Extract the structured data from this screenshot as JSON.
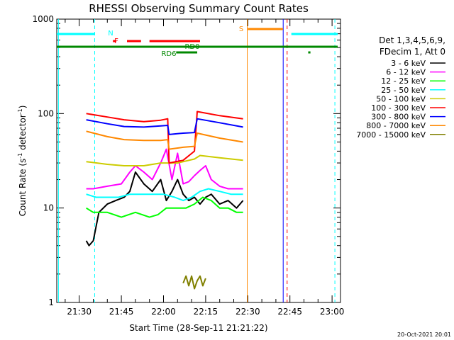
{
  "chart_data": {
    "type": "line",
    "title": "RHESSI Observing Summary Count Rates",
    "xlabel": "Start Time (28-Sep-11 21:21:22)",
    "ylabel_parts": [
      "Count Rate (s",
      "-1",
      " detector",
      "-1",
      ")"
    ],
    "yscale": "log",
    "ylim": [
      1,
      1000
    ],
    "xlim_min": [
      1282,
      1383
    ],
    "x_ticks": [
      {
        "m": 1290,
        "label": "21:30"
      },
      {
        "m": 1305,
        "label": "21:45"
      },
      {
        "m": 1320,
        "label": "22:00"
      },
      {
        "m": 1335,
        "label": "22:15"
      },
      {
        "m": 1350,
        "label": "22:30"
      },
      {
        "m": 1365,
        "label": "22:45"
      },
      {
        "m": 1380,
        "label": "23:00"
      }
    ],
    "y_ticks": [
      {
        "v": 1,
        "label": "1"
      },
      {
        "v": 10,
        "label": "10"
      },
      {
        "v": 100,
        "label": "100"
      },
      {
        "v": 1000,
        "label": "1000"
      }
    ],
    "legend_header": [
      "Det 1,3,4,5,6,9,",
      "FDecim 1, Att 0"
    ],
    "legend_position": "right",
    "timestamp": "20-Oct-2021 20:01",
    "series": [
      {
        "name": "3 - 6 keV",
        "color": "#000000",
        "x": [
          1292.5,
          1293.5,
          1295,
          1297,
          1300,
          1303,
          1306,
          1308,
          1310,
          1313,
          1316,
          1319,
          1321,
          1323,
          1325,
          1327,
          1329,
          1331,
          1333,
          1335,
          1337,
          1340,
          1343,
          1346,
          1348.3
        ],
        "y": [
          4.5,
          4,
          4.5,
          9,
          11,
          12,
          13,
          15,
          24,
          18,
          15,
          20,
          12,
          15,
          20,
          14,
          12,
          13,
          11,
          13,
          14,
          11,
          12,
          10,
          12
        ]
      },
      {
        "name": "6 - 12 keV",
        "color": "#ff00ff",
        "x": [
          1292.5,
          1295,
          1300,
          1305,
          1308,
          1310,
          1313,
          1316,
          1319,
          1321,
          1323,
          1325,
          1327,
          1329,
          1331,
          1333,
          1335,
          1337,
          1340,
          1343,
          1346,
          1348.3
        ],
        "y": [
          16,
          16,
          17,
          18,
          24,
          28,
          24,
          20,
          30,
          42,
          20,
          38,
          18,
          19,
          22,
          25,
          28,
          20,
          17,
          16,
          16,
          16
        ]
      },
      {
        "name": "12 - 25 keV",
        "color": "#00ff00",
        "x": [
          1292.5,
          1295,
          1300,
          1305,
          1310,
          1315,
          1318,
          1321,
          1325,
          1328,
          1331,
          1334,
          1337,
          1340,
          1343,
          1346,
          1348.3
        ],
        "y": [
          10,
          9,
          9,
          8,
          9,
          8,
          8.5,
          10,
          10,
          10,
          11,
          13,
          12,
          10,
          10,
          9,
          9
        ]
      },
      {
        "name": "25 - 50 keV",
        "color": "#00ffff",
        "x": [
          1292.5,
          1296,
          1300,
          1304,
          1308,
          1312,
          1316,
          1320,
          1324,
          1327,
          1330,
          1333,
          1336,
          1340,
          1344,
          1348.3
        ],
        "y": [
          14,
          13,
          13,
          13,
          14,
          14,
          14,
          14,
          13,
          12,
          13,
          15,
          16,
          15,
          14,
          14
        ]
      },
      {
        "name": "50 - 100 keV",
        "color": "#cccc00",
        "x": [
          1292.5,
          1300,
          1306,
          1313,
          1319,
          1321.5,
          1323,
          1325,
          1331,
          1333,
          1340,
          1348.3
        ],
        "y": [
          31,
          29,
          28,
          28,
          30,
          30,
          30,
          30,
          33,
          36,
          34,
          32
        ]
      },
      {
        "name": "100 - 300 keV",
        "color": "#ff0000",
        "x": [
          1292.5,
          1300,
          1306,
          1313,
          1319,
          1321.5,
          1322,
          1327,
          1331,
          1332,
          1340,
          1348.3
        ],
        "y": [
          100,
          92,
          86,
          82,
          85,
          88,
          30,
          32,
          40,
          105,
          95,
          88
        ]
      },
      {
        "name": "300 - 800 keV",
        "color": "#0000ff",
        "x": [
          1292.5,
          1300,
          1306,
          1313,
          1319,
          1321.5,
          1322,
          1327,
          1331,
          1332,
          1340,
          1348.3
        ],
        "y": [
          86,
          78,
          73,
          72,
          74,
          75,
          60,
          62,
          63,
          88,
          80,
          72
        ]
      },
      {
        "name": "800 - 7000 keV",
        "color": "#ff8800",
        "x": [
          1292.5,
          1300,
          1306,
          1313,
          1319,
          1321.5,
          1322,
          1327,
          1331,
          1332,
          1340,
          1348.3
        ],
        "y": [
          65,
          57,
          53,
          52,
          52,
          53,
          42,
          44,
          45,
          62,
          55,
          50
        ]
      },
      {
        "name": "7000 - 15000 keV",
        "color": "#808000",
        "x": [
          1327,
          1328,
          1329,
          1330,
          1331,
          1332,
          1333,
          1334,
          1335
        ],
        "y": [
          1.6,
          1.9,
          1.5,
          1.9,
          1.4,
          1.7,
          1.9,
          1.5,
          1.8
        ]
      }
    ],
    "annotations": [
      {
        "text": "N",
        "color": "#00ffff"
      },
      {
        "text": "F",
        "color": "#ff0000"
      },
      {
        "text": "S",
        "color": "#ff8800"
      },
      {
        "text": "RD0",
        "color": "#008800"
      },
      {
        "text": "RD6",
        "color": "#008800"
      }
    ],
    "state_bars": {
      "N": {
        "color": "#00ffff",
        "segments": [
          [
            1282,
            1295.5
          ],
          [
            1365.5,
            1382
          ]
        ]
      },
      "F": {
        "color": "#ff0000",
        "segments": [
          [
            1302,
            1303.2
          ],
          [
            1307,
            1312
          ],
          [
            1315,
            1333
          ]
        ]
      },
      "S": {
        "color": "#ff8800",
        "segments": [
          [
            1350,
            1362.5
          ]
        ]
      },
      "RD0": {
        "color": "#008800",
        "segments": [
          [
            1282,
            1382
          ]
        ]
      },
      "RD6": {
        "color": "#008800",
        "segments": [
          [
            1324.5,
            1332
          ],
          [
            1371.5,
            1372.3
          ]
        ]
      }
    },
    "dashed_lines": [
      {
        "m": 1295.5,
        "color": "#00ffff"
      },
      {
        "m": 1364,
        "color": "#ff0000"
      },
      {
        "m": 1381,
        "color": "#00ffff"
      }
    ],
    "solid_lines": [
      {
        "m": 1282.6,
        "color": "#00ffff"
      },
      {
        "m": 1349.8,
        "color": "#ff8800"
      },
      {
        "m": 1362.6,
        "color": "#0000ff"
      }
    ]
  }
}
